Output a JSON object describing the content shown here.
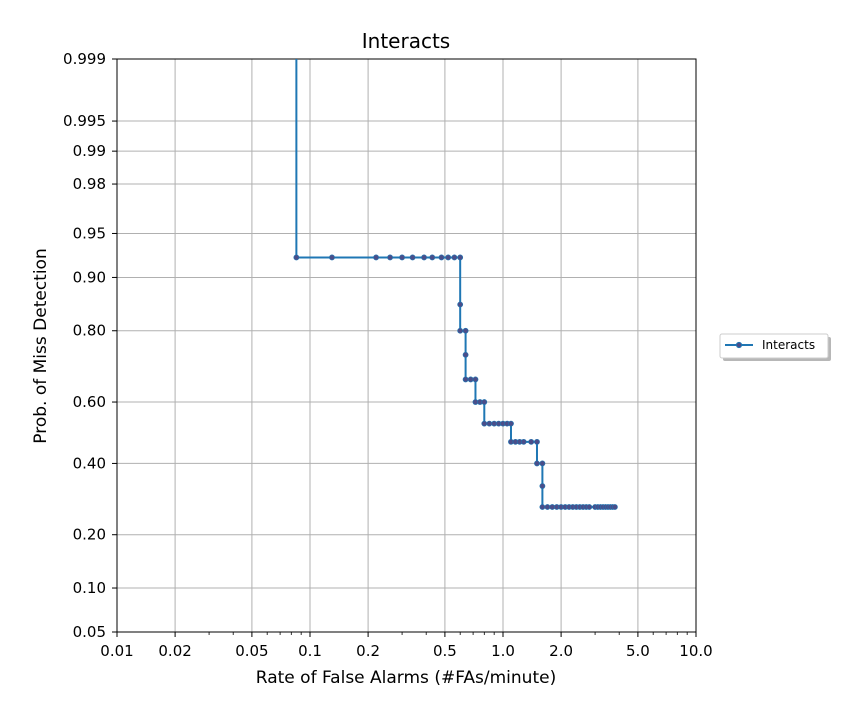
{
  "chart_data": {
    "type": "line",
    "title": "Interacts",
    "xlabel": "Rate of False Alarms (#FAs/minute)",
    "ylabel": "Prob. of Miss Detection",
    "x_scale": "log",
    "y_scale": "probit",
    "xlim": [
      0.01,
      10.0
    ],
    "ylim": [
      0.05,
      0.999
    ],
    "grid": true,
    "legend_position": "right",
    "x_ticks": [
      0.01,
      0.02,
      0.05,
      0.1,
      0.2,
      0.5,
      1.0,
      2.0,
      5.0,
      10.0
    ],
    "x_tick_labels": [
      "0.01",
      "0.02",
      "0.05",
      "0.1",
      "0.2",
      "0.5",
      "1.0",
      "2.0",
      "5.0",
      "10.0"
    ],
    "y_ticks": [
      0.05,
      0.1,
      0.2,
      0.4,
      0.6,
      0.8,
      0.9,
      0.95,
      0.98,
      0.99,
      0.995,
      0.999
    ],
    "y_tick_labels": [
      "0.05",
      "0.10",
      "0.20",
      "0.40",
      "0.60",
      "0.80",
      "0.90",
      "0.95",
      "0.98",
      "0.99",
      "0.995",
      "0.999"
    ],
    "series": [
      {
        "name": "Interacts",
        "line_color": "#1f77b4",
        "marker_color": "#4a4e8a",
        "line_start": [
          0.085,
          0.999
        ],
        "points": [
          [
            0.085,
            0.926
          ],
          [
            0.13,
            0.926
          ],
          [
            0.22,
            0.926
          ],
          [
            0.26,
            0.926
          ],
          [
            0.3,
            0.926
          ],
          [
            0.34,
            0.926
          ],
          [
            0.39,
            0.926
          ],
          [
            0.43,
            0.926
          ],
          [
            0.48,
            0.926
          ],
          [
            0.52,
            0.926
          ],
          [
            0.56,
            0.926
          ],
          [
            0.6,
            0.926
          ],
          [
            0.6,
            0.855
          ],
          [
            0.6,
            0.8
          ],
          [
            0.64,
            0.8
          ],
          [
            0.64,
            0.74
          ],
          [
            0.64,
            0.67
          ],
          [
            0.68,
            0.67
          ],
          [
            0.72,
            0.67
          ],
          [
            0.72,
            0.6
          ],
          [
            0.76,
            0.6
          ],
          [
            0.8,
            0.6
          ],
          [
            0.8,
            0.53
          ],
          [
            0.85,
            0.53
          ],
          [
            0.9,
            0.53
          ],
          [
            0.95,
            0.53
          ],
          [
            1.0,
            0.53
          ],
          [
            1.05,
            0.53
          ],
          [
            1.1,
            0.53
          ],
          [
            1.1,
            0.47
          ],
          [
            1.16,
            0.47
          ],
          [
            1.22,
            0.47
          ],
          [
            1.28,
            0.47
          ],
          [
            1.4,
            0.47
          ],
          [
            1.5,
            0.47
          ],
          [
            1.5,
            0.4
          ],
          [
            1.6,
            0.4
          ],
          [
            1.6,
            0.33
          ],
          [
            1.6,
            0.27
          ],
          [
            1.7,
            0.27
          ],
          [
            1.8,
            0.27
          ],
          [
            1.9,
            0.27
          ],
          [
            2.0,
            0.27
          ],
          [
            2.1,
            0.27
          ],
          [
            2.2,
            0.27
          ],
          [
            2.3,
            0.27
          ],
          [
            2.4,
            0.27
          ],
          [
            2.5,
            0.27
          ],
          [
            2.6,
            0.27
          ],
          [
            2.7,
            0.27
          ],
          [
            2.8,
            0.27
          ],
          [
            3.0,
            0.27
          ],
          [
            3.1,
            0.27
          ],
          [
            3.2,
            0.27
          ],
          [
            3.3,
            0.27
          ],
          [
            3.4,
            0.27
          ],
          [
            3.5,
            0.27
          ],
          [
            3.6,
            0.27
          ],
          [
            3.7,
            0.27
          ],
          [
            3.8,
            0.27
          ]
        ]
      }
    ]
  }
}
